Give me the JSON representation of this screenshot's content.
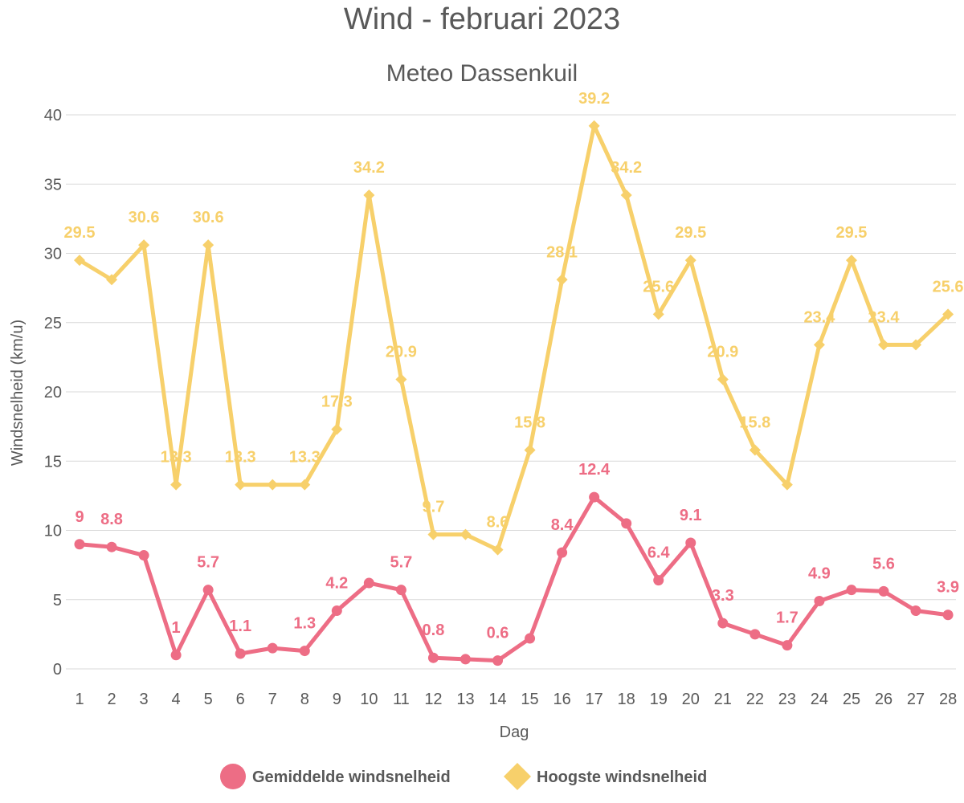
{
  "chart_data": {
    "type": "line",
    "title": "Wind - februari 2023",
    "subtitle": "Meteo Dassenkuil",
    "xlabel": "Dag",
    "ylabel": "Windsnelheid (km/u)",
    "ylim": [
      0,
      40
    ],
    "yticks": [
      0,
      5,
      10,
      15,
      20,
      25,
      30,
      35,
      40
    ],
    "grid": true,
    "legend_position": "bottom",
    "categories": [
      "1",
      "2",
      "3",
      "4",
      "5",
      "6",
      "7",
      "8",
      "9",
      "10",
      "11",
      "12",
      "13",
      "14",
      "15",
      "16",
      "17",
      "18",
      "19",
      "20",
      "21",
      "22",
      "23",
      "24",
      "25",
      "26",
      "27",
      "28"
    ],
    "series": [
      {
        "name": "Gemiddelde windsnelheid",
        "color": "#ed6d85",
        "marker": "circle",
        "values": [
          9,
          8.8,
          8.2,
          1,
          5.7,
          1.1,
          1.5,
          1.3,
          4.2,
          6.2,
          5.7,
          0.8,
          0.7,
          0.6,
          2.2,
          8.4,
          12.4,
          10.5,
          6.4,
          9.1,
          3.3,
          2.5,
          1.7,
          4.9,
          5.7,
          5.6,
          4.2,
          3.9
        ],
        "labels": [
          "9",
          "8.8",
          "",
          "1",
          "5.7",
          "1.1",
          "",
          "1.3",
          "4.2",
          "",
          "5.7",
          "0.8",
          "",
          "0.6",
          "",
          "8.4",
          "12.4",
          "",
          "6.4",
          "9.1",
          "3.3",
          "",
          "1.7",
          "4.9",
          "",
          "5.6",
          "",
          "3.9"
        ]
      },
      {
        "name": "Hoogste windsnelheid",
        "color": "#f7d06b",
        "marker": "diamond",
        "values": [
          29.5,
          28.1,
          30.6,
          13.3,
          30.6,
          13.3,
          13.3,
          13.3,
          17.3,
          34.2,
          20.9,
          9.7,
          9.7,
          8.6,
          15.8,
          28.1,
          39.2,
          34.2,
          25.6,
          29.5,
          20.9,
          15.8,
          13.3,
          23.4,
          29.5,
          23.4,
          23.4,
          25.6
        ],
        "labels": [
          "29.5",
          "",
          "30.6",
          "13.3",
          "30.6",
          "13.3",
          "",
          "13.3",
          "17.3",
          "34.2",
          "20.9",
          "9.7",
          "",
          "8.6",
          "15.8",
          "28.1",
          "39.2",
          "34.2",
          "25.6",
          "29.5",
          "20.9",
          "15.8",
          "",
          "23.4",
          "29.5",
          "23.4",
          "",
          "25.6"
        ]
      }
    ]
  }
}
